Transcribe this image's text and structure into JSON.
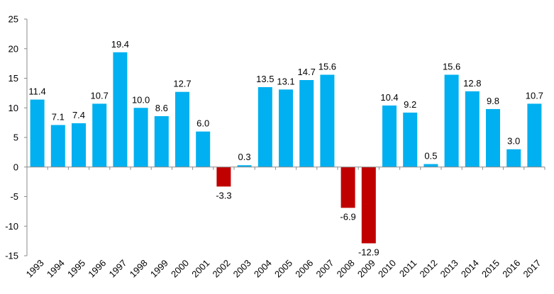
{
  "chart_data": {
    "type": "bar",
    "title": "",
    "xlabel": "",
    "ylabel": "",
    "categories": [
      "1993",
      "1994",
      "1995",
      "1996",
      "1997",
      "1998",
      "1999",
      "2000",
      "2001",
      "2002",
      "2003",
      "2004",
      "2005",
      "2006",
      "2007",
      "2008",
      "2009",
      "2010",
      "2011",
      "2012",
      "2013",
      "2014",
      "2015",
      "2016",
      "2017"
    ],
    "values": [
      11.4,
      7.1,
      7.4,
      10.7,
      19.4,
      10.0,
      8.6,
      12.7,
      6.0,
      -3.3,
      0.3,
      13.5,
      13.1,
      14.7,
      15.6,
      -6.9,
      -12.9,
      10.4,
      9.2,
      0.5,
      15.6,
      12.8,
      9.8,
      3.0,
      10.7
    ],
    "data_labels": [
      "11.4",
      "7.1",
      "7.4",
      "10.7",
      "19.4",
      "10.0",
      "8.6",
      "12.7",
      "6.0",
      "-3.3",
      "0.3",
      "13.5",
      "13.1",
      "14.7",
      "15.6",
      "-6.9",
      "-12.9",
      "10.4",
      "9.2",
      "0.5",
      "15.6",
      "12.8",
      "9.8",
      "3.0",
      "10.7"
    ],
    "ylim": [
      -15,
      25
    ],
    "y_ticks": [
      25,
      20,
      15,
      10,
      5,
      0,
      -5,
      -10,
      -15
    ],
    "y_tick_labels": [
      "25",
      "20",
      "15",
      "10",
      "5",
      "0",
      "-5",
      "-10",
      "-15"
    ],
    "grid": false,
    "legend": "none",
    "colors": {
      "positive": "#00b0f0",
      "negative": "#c00000",
      "axis": "#8a8a8a",
      "text": "#000000"
    }
  }
}
